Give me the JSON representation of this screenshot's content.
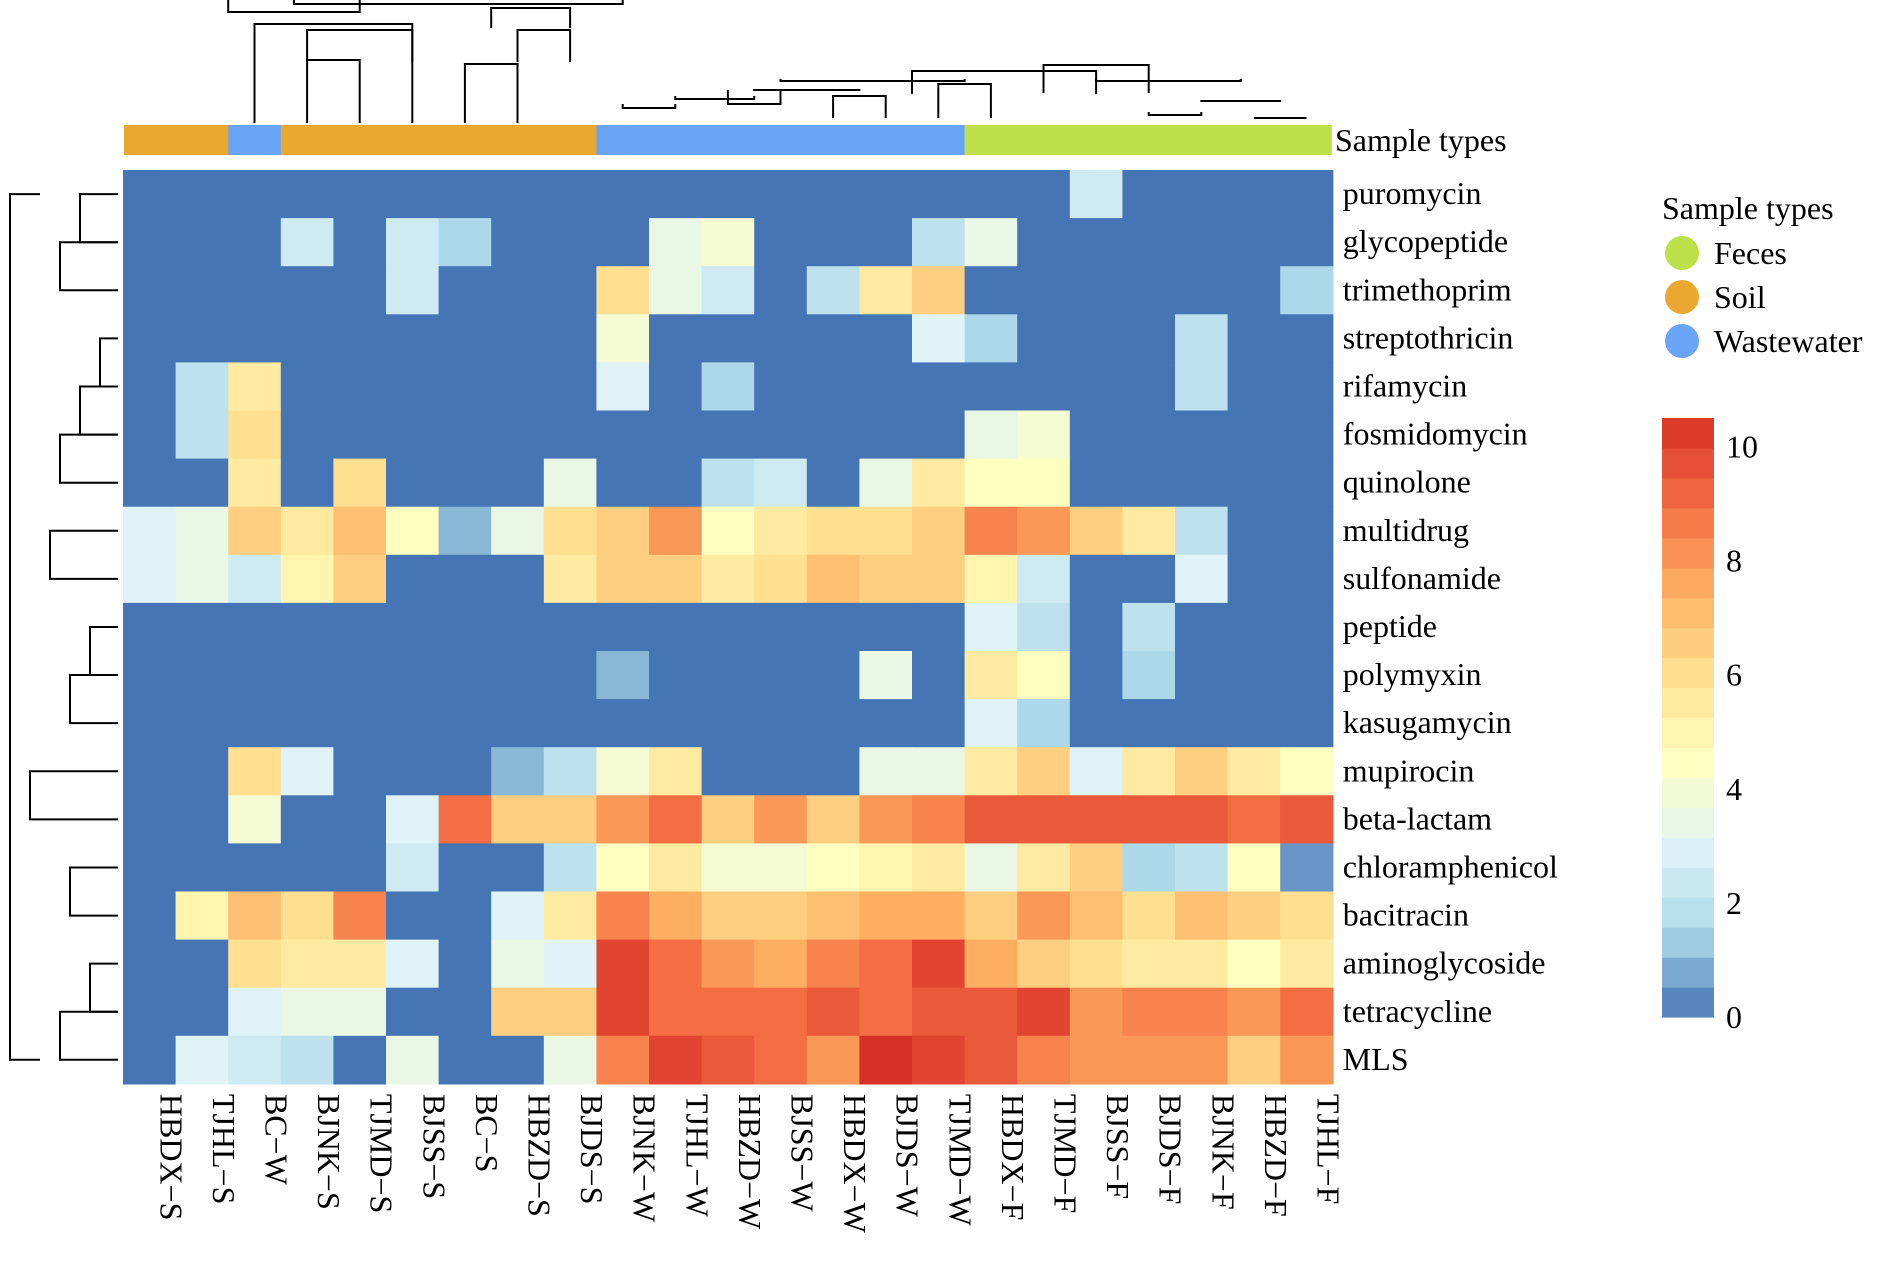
{
  "chart_data": {
    "type": "heatmap",
    "title": "",
    "xlabel": "",
    "ylabel": "",
    "columns": [
      "HBDX−S",
      "TJHL−S",
      "BC−W",
      "BJNK−S",
      "TJMD−S",
      "BJSS−S",
      "BC−S",
      "HBZD−S",
      "BJDS−S",
      "BJNK−W",
      "TJHL−W",
      "HBZD−W",
      "BJSS−W",
      "HBDX−W",
      "BJDS−W",
      "TJMD−W",
      "HBDX−F",
      "TJMD−F",
      "BJSS−F",
      "BJDS−F",
      "BJNK−F",
      "HBZD−F",
      "TJHL−F"
    ],
    "rows": [
      "puromycin",
      "glycopeptide",
      "trimethoprim",
      "streptothricin",
      "rifamycin",
      "fosmidomycin",
      "quinolone",
      "multidrug",
      "sulfonamide",
      "peptide",
      "polymyxin",
      "kasugamycin",
      "mupirocin",
      "beta-lactam",
      "chloramphenicol",
      "bacitracin",
      "aminoglycoside",
      "tetracycline",
      "MLS"
    ],
    "values": [
      [
        0,
        0,
        0,
        0,
        0,
        0,
        0,
        0,
        0,
        0,
        0,
        0,
        0,
        0,
        0,
        0,
        0,
        0,
        2.5,
        0,
        0,
        0,
        0
      ],
      [
        0,
        0,
        0,
        2.5,
        0,
        2.5,
        1.5,
        0,
        0,
        0,
        3.5,
        4,
        0,
        0,
        0,
        2,
        3.5,
        0,
        0,
        0,
        0,
        0,
        0
      ],
      [
        0,
        0,
        0,
        0,
        0,
        2.5,
        0,
        0,
        0,
        6,
        3.5,
        2.5,
        0,
        2,
        5.5,
        6.5,
        0,
        0,
        0,
        0,
        0,
        0,
        1.5
      ],
      [
        0,
        0,
        0,
        0,
        0,
        0,
        0,
        0,
        0,
        4,
        0,
        0,
        0,
        0,
        0,
        3,
        1.5,
        0,
        0,
        0,
        2,
        0,
        0
      ],
      [
        0,
        2,
        5.5,
        0,
        0,
        0,
        0,
        0,
        0,
        3,
        0,
        1.5,
        0,
        0,
        0,
        0,
        0,
        0,
        0,
        0,
        2,
        0,
        0
      ],
      [
        0,
        2,
        6,
        0,
        0,
        0,
        0,
        0,
        0,
        0,
        0,
        0,
        0,
        0,
        0,
        0,
        3.5,
        4,
        0,
        0,
        0,
        0,
        0
      ],
      [
        0,
        0,
        5.5,
        0,
        6,
        0,
        0,
        0,
        3.5,
        0,
        0,
        2,
        2.5,
        0,
        3.5,
        5.5,
        4.5,
        4.5,
        0,
        0,
        0,
        0,
        0
      ],
      [
        3,
        3.5,
        6.5,
        5.5,
        7,
        4.5,
        1,
        3.5,
        6,
        6.5,
        8,
        4.5,
        5.5,
        6,
        6,
        6.5,
        8.5,
        8,
        6.5,
        5.5,
        2,
        0,
        0
      ],
      [
        3,
        3.5,
        2.5,
        5,
        6.5,
        0,
        0,
        0,
        5.5,
        6.5,
        6.5,
        5.5,
        6,
        7,
        6.5,
        6.5,
        5,
        2.5,
        0,
        0,
        3,
        0,
        0
      ],
      [
        0,
        0,
        0,
        0,
        0,
        0,
        0,
        0,
        0,
        0,
        0,
        0,
        0,
        0,
        0,
        0,
        3,
        2,
        0,
        2,
        0,
        0,
        0
      ],
      [
        0,
        0,
        0,
        0,
        0,
        0,
        0,
        0,
        0,
        1,
        0,
        0,
        0,
        0,
        3.5,
        0,
        5.5,
        4.5,
        0,
        1.5,
        0,
        0,
        0
      ],
      [
        0,
        0,
        0,
        0,
        0,
        0,
        0,
        0,
        0,
        0,
        0,
        0,
        0,
        0,
        0,
        0,
        3,
        1.5,
        0,
        0,
        0,
        0,
        0
      ],
      [
        0,
        0,
        6,
        3,
        0,
        0,
        0,
        1,
        2,
        4,
        5.5,
        0,
        0,
        0,
        3.5,
        3.5,
        5.5,
        6.5,
        3,
        5.5,
        6.5,
        5.5,
        4.5
      ],
      [
        0,
        0,
        4,
        0,
        0,
        3,
        9,
        6.5,
        6.5,
        8,
        9,
        6.5,
        8,
        6.5,
        8,
        8.5,
        9.5,
        9.5,
        9.5,
        9.5,
        9.5,
        9,
        9.5
      ],
      [
        0,
        0,
        0,
        0,
        0,
        2.5,
        0,
        0,
        2,
        4.5,
        5.5,
        4,
        4,
        4.5,
        5,
        5.5,
        3.5,
        5.5,
        6.5,
        1.5,
        2,
        4.5,
        0.5
      ],
      [
        0,
        5,
        7,
        6,
        8.5,
        0,
        0,
        3,
        5.5,
        8.5,
        7.5,
        6.5,
        6.5,
        7,
        7.5,
        7.5,
        6.5,
        8,
        7,
        6,
        7,
        6.5,
        6
      ],
      [
        0,
        0,
        6,
        5.5,
        5.5,
        3,
        0,
        3.5,
        3,
        10,
        9,
        8,
        7.5,
        8.5,
        9,
        10,
        7.5,
        6.5,
        6,
        5.5,
        5.5,
        4.5,
        5.5
      ],
      [
        0,
        0,
        3,
        3.5,
        3.5,
        0,
        0,
        6.5,
        6.5,
        10,
        9,
        9,
        9,
        9.5,
        9,
        9.5,
        9.5,
        10,
        8,
        8.5,
        8.5,
        8,
        9
      ],
      [
        0,
        3,
        2.5,
        2,
        0,
        3.5,
        0,
        0,
        3.5,
        8.5,
        10,
        9.5,
        9,
        8,
        10.5,
        10,
        9.5,
        8.5,
        8,
        8,
        8,
        6.5,
        8
      ]
    ],
    "column_groups": [
      "Soil",
      "Soil",
      "Wastewater",
      "Soil",
      "Soil",
      "Soil",
      "Soil",
      "Soil",
      "Soil",
      "Wastewater",
      "Wastewater",
      "Wastewater",
      "Wastewater",
      "Wastewater",
      "Wastewater",
      "Wastewater",
      "Feces",
      "Feces",
      "Feces",
      "Feces",
      "Feces",
      "Feces",
      "Feces"
    ],
    "annotation_label": "Sample types",
    "legend": {
      "title": "Sample types",
      "items": [
        {
          "label": "Feces",
          "color": "#bde04b"
        },
        {
          "label": "Soil",
          "color": "#eba830"
        },
        {
          "label": "Wastewater",
          "color": "#6aa4f6"
        }
      ]
    },
    "colorbar": {
      "range": [
        0,
        10.5
      ],
      "ticks": [
        "0",
        "2",
        "4",
        "6",
        "8",
        "10"
      ],
      "tick_values": [
        0,
        2,
        4,
        6,
        8,
        10
      ]
    },
    "color_stops": [
      "#4575b4",
      "#abd9e9",
      "#e0f3f8",
      "#ffffbf",
      "#fee090",
      "#fdae61",
      "#f46d43",
      "#d73027"
    ],
    "group_colors": {
      "Feces": "#bde04b",
      "Soil": "#eba830",
      "Wastewater": "#6aa4f6"
    }
  }
}
